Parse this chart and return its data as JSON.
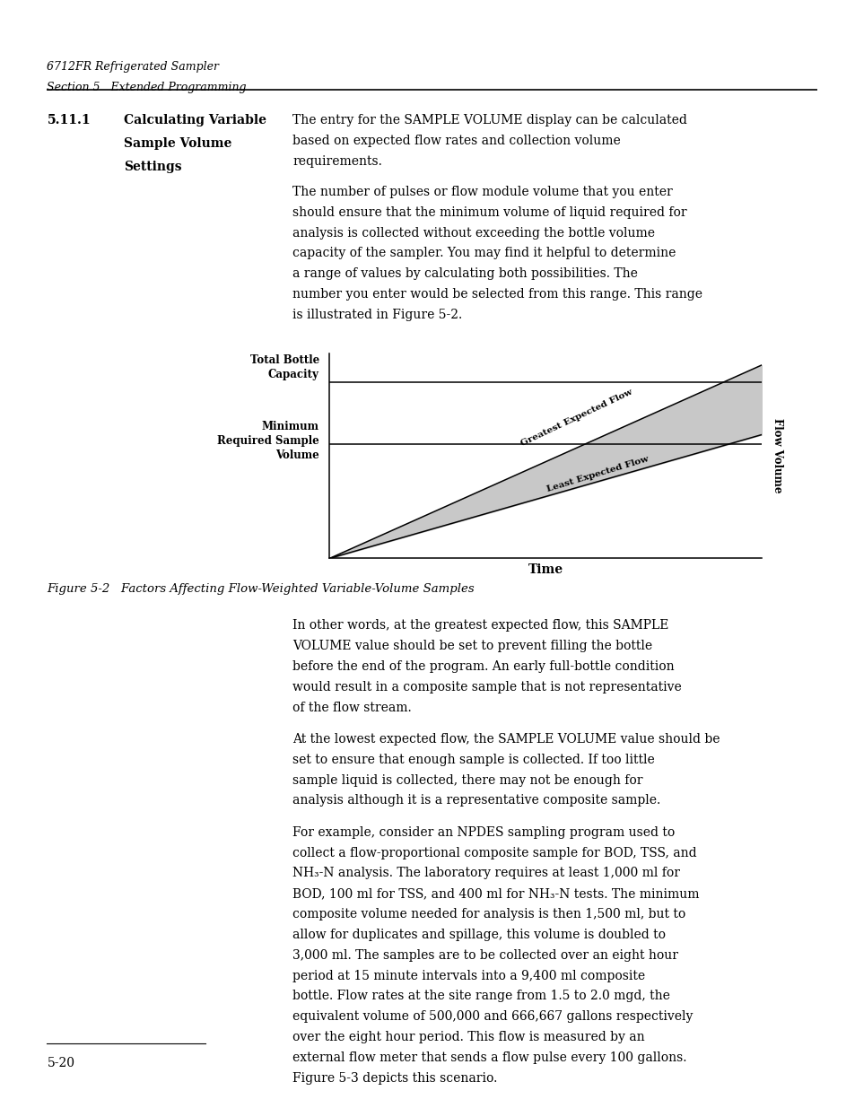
{
  "page_width": 9.54,
  "page_height": 12.35,
  "background_color": "#ffffff",
  "header_line1": "6712FR Refrigerated Sampler",
  "header_line2": "Section 5   Extended Programming",
  "header_font_size": 9,
  "section_number": "5.11.1",
  "section_title_lines": [
    "Calculating Variable",
    "Sample Volume",
    "Settings"
  ],
  "section_title_font_size": 10,
  "right_col_paragraphs": [
    "The entry for the SAMPLE VOLUME display can be calculated based on expected flow rates and collection volume requirements.",
    "The number of pulses or flow module volume that you enter should ensure that the minimum volume of liquid required for analysis is collected without exceeding the bottle volume capacity of the sampler. You may find it helpful to determine a range of values by calculating both possibilities. The number you enter would be selected from this range. This range is illustrated in Figure 5-2.",
    "In other words, at the greatest expected flow, this SAMPLE VOLUME value should be set to prevent filling the bottle before the end of the program. An early full-bottle condition would result in a composite sample that is not representative of the flow stream.",
    "At the lowest expected flow, the SAMPLE VOLUME value should be set to ensure that enough sample is collected. If too little sample liquid is collected, there may not be enough for analysis although it is a representative composite sample.",
    "For example, consider an NPDES sampling program used to collect a flow-proportional composite sample for BOD, TSS, and NH₃-N analysis. The laboratory requires at least 1,000 ml for BOD, 100 ml for TSS, and 400 ml for NH₃-N tests. The minimum composite volume needed for analysis is then 1,500 ml, but to allow for duplicates and spillage, this volume is doubled to 3,000 ml. The samples are to be collected over an eight hour period at 15 minute intervals into a 9,400 ml composite bottle. Flow rates at the site range from 1.5 to 2.0 mgd, the equivalent volume of 500,000 and 666,667 gallons respectively over the eight hour period. This flow is measured by an external flow meter that sends a flow pulse every 100 gallons. Figure 5-3 depicts this scenario."
  ],
  "figure_caption": "Figure 5-2   Factors Affecting Flow-Weighted Variable-Volume Samples",
  "chart_ylabel": "Flow Volume",
  "chart_xlabel": "Time",
  "chart_line1_label": "Greatest Expected Flow",
  "chart_line2_label": "Least Expected Flow",
  "chart_fill_color": "#c8c8c8",
  "footer_text": "5-20",
  "body_font_size": 10
}
